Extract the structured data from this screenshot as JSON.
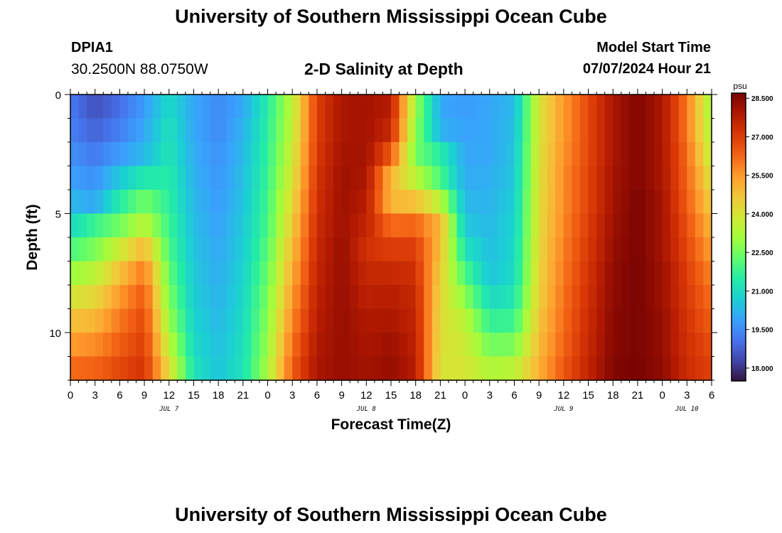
{
  "header": {
    "title": "University of Southern Mississippi Ocean Cube",
    "station_id": "DPIA1",
    "station_coords": "30.2500N  88.0750W",
    "model_start_label": "Model Start Time",
    "model_start_value": "07/07/2024 Hour 21"
  },
  "footer": {
    "title": "University of Southern Mississippi Ocean Cube"
  },
  "chart_data": {
    "type": "heatmap",
    "title": "2-D Salinity at Depth",
    "xlabel": "Forecast Time(Z)",
    "ylabel": "Depth (ft)",
    "x_tick_labels": [
      "0",
      "3",
      "6",
      "9",
      "12",
      "15",
      "18",
      "21",
      "0",
      "3",
      "6",
      "9",
      "12",
      "15",
      "18",
      "21",
      "0",
      "3",
      "6",
      "9",
      "12",
      "15",
      "18",
      "21",
      "0",
      "3",
      "6"
    ],
    "x_hours": [
      0,
      3,
      6,
      9,
      12,
      15,
      18,
      21,
      24,
      27,
      30,
      33,
      36,
      39,
      42,
      45,
      48,
      51,
      54,
      57,
      60,
      63,
      66,
      69,
      72,
      75,
      78
    ],
    "date_labels": [
      {
        "label": "JUL 7",
        "hour": 12
      },
      {
        "label": "JUL 8",
        "hour": 36
      },
      {
        "label": "JUL 9",
        "hour": 60
      },
      {
        "label": "JUL 10",
        "hour": 75
      }
    ],
    "xlim": [
      0,
      78
    ],
    "ylim": [
      0,
      12
    ],
    "y_tick_labels": [
      "0",
      "5",
      "10"
    ],
    "y_ticks": [
      0,
      5,
      10
    ],
    "colorbar": {
      "unit": "psu",
      "min": 17.5,
      "max": 28.7,
      "ticks": [
        "28.500",
        "27.000",
        "25.500",
        "24.000",
        "22.500",
        "21.000",
        "19.500",
        "18.000"
      ],
      "tick_values": [
        28.5,
        27.0,
        25.5,
        24.0,
        22.5,
        21.0,
        19.5,
        18.0
      ],
      "colors": [
        "#30123b",
        "#4145ab",
        "#4675ed",
        "#39a2fc",
        "#1bcfd4",
        "#24eca6",
        "#61fc6c",
        "#a4fc3b",
        "#d1e834",
        "#f3c63a",
        "#fe9b2d",
        "#f36315",
        "#d93806",
        "#b11901",
        "#7a0402"
      ]
    },
    "depth_layers_ft": [
      0.5,
      1.5,
      2.5,
      3.5,
      4.5,
      5.5,
      6.5,
      7.5,
      8.5,
      9.5,
      10.5,
      11.5
    ],
    "time_hours": [
      0,
      3,
      6,
      9,
      12,
      15,
      18,
      21,
      24,
      27,
      30,
      33,
      36,
      39,
      42,
      45,
      48,
      51,
      54,
      57,
      60,
      63,
      66,
      69,
      72,
      75,
      78
    ],
    "salinity_psu": [
      [
        19.2,
        18.5,
        19.0,
        19.8,
        21.0,
        20.0,
        19.5,
        20.0,
        21.5,
        23.5,
        27.0,
        28.0,
        28.1,
        27.8,
        23.0,
        20.0,
        19.8,
        20.0,
        20.3,
        24.0,
        25.5,
        26.8,
        28.0,
        28.6,
        28.0,
        26.0,
        23.0
      ],
      [
        19.3,
        18.8,
        19.3,
        20.0,
        21.2,
        20.0,
        19.5,
        20.2,
        21.6,
        23.6,
        27.0,
        28.0,
        28.1,
        27.5,
        22.8,
        20.2,
        19.9,
        20.0,
        20.4,
        24.0,
        25.5,
        26.8,
        28.0,
        28.6,
        28.0,
        26.0,
        23.2
      ],
      [
        19.6,
        19.2,
        19.8,
        20.3,
        21.3,
        20.1,
        19.6,
        20.3,
        21.7,
        23.8,
        27.1,
        28.1,
        28.1,
        26.5,
        22.5,
        21.5,
        20.0,
        20.0,
        20.5,
        24.1,
        25.6,
        26.8,
        28.0,
        28.6,
        28.0,
        26.2,
        23.5
      ],
      [
        19.9,
        19.6,
        20.6,
        21.4,
        21.5,
        20.2,
        19.7,
        20.4,
        21.8,
        24.0,
        27.2,
        28.2,
        28.0,
        25.0,
        23.5,
        22.0,
        20.1,
        20.1,
        20.6,
        24.1,
        25.7,
        26.9,
        28.1,
        28.6,
        28.0,
        26.3,
        24.0
      ],
      [
        20.3,
        20.0,
        21.5,
        22.5,
        21.6,
        20.3,
        19.8,
        20.5,
        21.9,
        24.3,
        27.3,
        28.2,
        27.8,
        25.0,
        24.8,
        23.5,
        20.3,
        20.2,
        20.7,
        24.2,
        25.7,
        26.9,
        28.1,
        28.7,
        28.1,
        26.4,
        24.5
      ],
      [
        21.0,
        21.8,
        22.5,
        23.5,
        21.8,
        20.4,
        19.9,
        20.6,
        22.0,
        24.6,
        27.4,
        28.2,
        27.6,
        26.2,
        26.3,
        25.0,
        20.6,
        20.3,
        20.8,
        24.2,
        25.8,
        27.0,
        28.2,
        28.7,
        28.1,
        26.6,
        25.0
      ],
      [
        22.0,
        22.6,
        23.8,
        25.0,
        22.0,
        20.5,
        20.0,
        20.7,
        22.2,
        24.9,
        27.5,
        28.3,
        27.3,
        27.0,
        27.0,
        24.8,
        21.2,
        20.4,
        20.9,
        24.3,
        25.9,
        27.1,
        28.3,
        28.7,
        28.1,
        26.8,
        25.4
      ],
      [
        23.0,
        23.5,
        24.8,
        26.0,
        22.3,
        20.6,
        20.1,
        20.8,
        22.4,
        25.2,
        27.6,
        28.3,
        27.5,
        27.5,
        27.3,
        24.5,
        22.0,
        20.5,
        21.0,
        24.4,
        26.0,
        27.2,
        28.4,
        28.7,
        28.2,
        27.0,
        25.8
      ],
      [
        24.0,
        24.3,
        25.5,
        26.5,
        22.6,
        20.7,
        20.2,
        20.9,
        22.6,
        25.5,
        27.7,
        28.3,
        27.7,
        27.8,
        27.5,
        24.3,
        22.8,
        21.0,
        21.3,
        24.5,
        26.1,
        27.3,
        28.4,
        28.7,
        28.2,
        27.1,
        26.1
      ],
      [
        24.8,
        25.0,
        26.0,
        26.8,
        23.0,
        20.8,
        20.3,
        21.0,
        22.8,
        25.8,
        27.8,
        28.3,
        27.9,
        28.0,
        27.6,
        24.2,
        23.5,
        21.7,
        21.8,
        24.7,
        26.2,
        27.4,
        28.5,
        28.7,
        28.3,
        27.2,
        26.4
      ],
      [
        25.5,
        25.7,
        26.4,
        27.0,
        23.5,
        21.0,
        20.4,
        21.1,
        23.0,
        26.1,
        27.9,
        28.3,
        28.0,
        28.2,
        27.7,
        24.1,
        23.8,
        22.5,
        22.6,
        24.9,
        26.3,
        27.5,
        28.5,
        28.7,
        28.3,
        27.3,
        26.7
      ],
      [
        26.2,
        26.3,
        26.8,
        27.2,
        24.2,
        21.2,
        20.5,
        21.2,
        23.2,
        26.4,
        28.0,
        28.3,
        28.1,
        28.3,
        27.8,
        24.0,
        24.0,
        23.3,
        23.5,
        25.1,
        26.5,
        27.6,
        28.6,
        28.7,
        28.4,
        27.4,
        26.9
      ]
    ]
  }
}
